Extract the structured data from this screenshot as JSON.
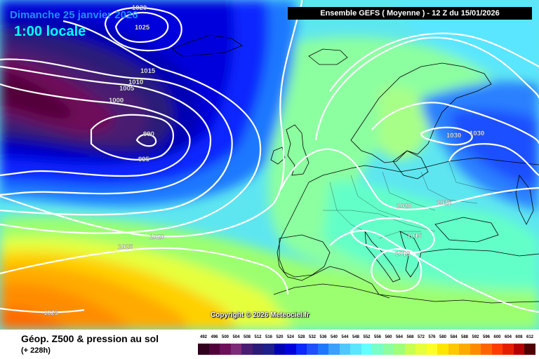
{
  "header": {
    "date": "Dimanche 25 janvier 2026",
    "time": "1:00 locale",
    "run": "Ensemble GEFS  ( Moyenne )  - 12 Z du 15/01/2026"
  },
  "copyright": "Copyright © 2026 Meteociel.fr",
  "footer": {
    "title": "Géop. Z500 & pression au sol",
    "subtitle": "(+ 228h)"
  },
  "isobar_labels": [
    "1020",
    "1025",
    "1015",
    "1010",
    "1005",
    "1000",
    "990",
    "995",
    "1020",
    "1025",
    "1025",
    "1030",
    "1030",
    "1020",
    "1025",
    "1015",
    "1010"
  ],
  "legend": {
    "values": [
      "492",
      "496",
      "500",
      "504",
      "508",
      "512",
      "516",
      "520",
      "524",
      "528",
      "532",
      "536",
      "540",
      "544",
      "548",
      "552",
      "556",
      "560",
      "564",
      "568",
      "572",
      "576",
      "580",
      "584",
      "588",
      "592",
      "596",
      "600",
      "604",
      "608",
      "612"
    ],
    "colors": [
      "#30001e",
      "#52003a",
      "#6e0f5a",
      "#7d2a78",
      "#4a1d72",
      "#2c1a78",
      "#1e1e8c",
      "#0000b4",
      "#0000dc",
      "#0a28ff",
      "#1e50ff",
      "#1e78ff",
      "#3ca0ff",
      "#50c8ff",
      "#5ae6ff",
      "#64ffff",
      "#78ffc8",
      "#8cffa0",
      "#a0ff78",
      "#c8ff50",
      "#e6ff3c",
      "#ffff28",
      "#ffe600",
      "#ffc800",
      "#ffaa00",
      "#ff8c00",
      "#ff6400",
      "#ff3c00",
      "#e61e00",
      "#b40000",
      "#500000"
    ]
  }
}
